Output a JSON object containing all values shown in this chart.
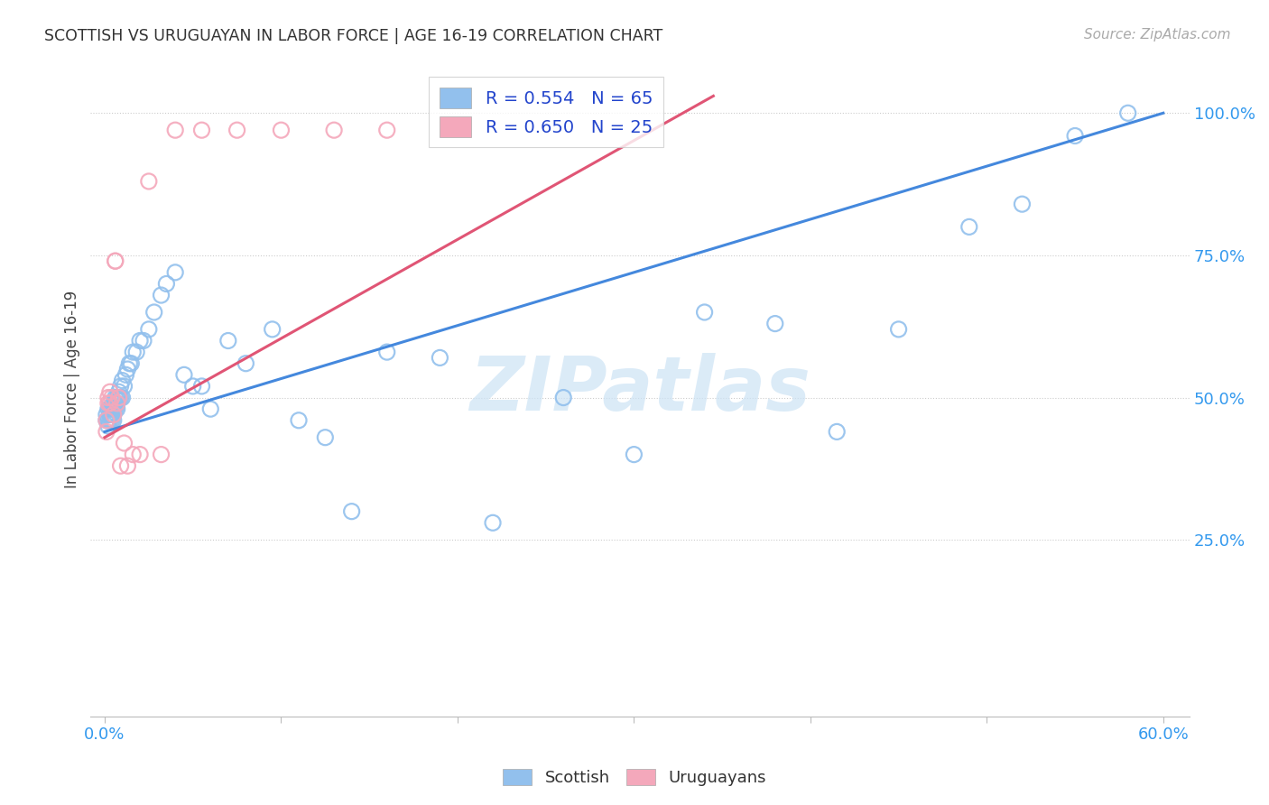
{
  "title": "SCOTTISH VS URUGUAYAN IN LABOR FORCE | AGE 16-19 CORRELATION CHART",
  "source": "Source: ZipAtlas.com",
  "ylabel": "In Labor Force | Age 16-19",
  "xlim": [
    0.0,
    0.6
  ],
  "ylim": [
    0.0,
    1.08
  ],
  "ytick_labels": [
    "25.0%",
    "50.0%",
    "75.0%",
    "100.0%"
  ],
  "ytick_values": [
    0.25,
    0.5,
    0.75,
    1.0
  ],
  "legend_r_scottish": "R = 0.554",
  "legend_n_scottish": "N = 65",
  "legend_r_uruguayan": "R = 0.650",
  "legend_n_uruguayan": "N = 25",
  "scottish_color": "#92c0ed",
  "uruguayan_color": "#f4a8bb",
  "scottish_line_color": "#4488dd",
  "uruguayan_line_color": "#e05575",
  "watermark_color": "#cce3f5",
  "scottish_x": [
    0.001,
    0.001,
    0.002,
    0.002,
    0.002,
    0.003,
    0.003,
    0.003,
    0.003,
    0.004,
    0.004,
    0.004,
    0.005,
    0.005,
    0.005,
    0.005,
    0.006,
    0.006,
    0.006,
    0.007,
    0.007,
    0.007,
    0.008,
    0.008,
    0.009,
    0.009,
    0.01,
    0.01,
    0.011,
    0.012,
    0.013,
    0.014,
    0.015,
    0.016,
    0.018,
    0.02,
    0.022,
    0.025,
    0.028,
    0.032,
    0.035,
    0.04,
    0.045,
    0.05,
    0.055,
    0.06,
    0.07,
    0.08,
    0.095,
    0.11,
    0.125,
    0.14,
    0.16,
    0.19,
    0.22,
    0.26,
    0.3,
    0.34,
    0.38,
    0.415,
    0.45,
    0.49,
    0.52,
    0.55,
    0.58
  ],
  "scottish_y": [
    0.46,
    0.47,
    0.45,
    0.48,
    0.46,
    0.47,
    0.46,
    0.48,
    0.47,
    0.46,
    0.48,
    0.47,
    0.47,
    0.49,
    0.48,
    0.46,
    0.49,
    0.48,
    0.5,
    0.48,
    0.5,
    0.49,
    0.51,
    0.5,
    0.5,
    0.52,
    0.5,
    0.53,
    0.52,
    0.54,
    0.55,
    0.56,
    0.56,
    0.58,
    0.58,
    0.6,
    0.6,
    0.62,
    0.65,
    0.68,
    0.7,
    0.72,
    0.54,
    0.52,
    0.52,
    0.48,
    0.6,
    0.56,
    0.62,
    0.46,
    0.43,
    0.3,
    0.58,
    0.57,
    0.28,
    0.5,
    0.4,
    0.65,
    0.63,
    0.44,
    0.62,
    0.8,
    0.84,
    0.96,
    1.0
  ],
  "uruguayan_x": [
    0.001,
    0.001,
    0.002,
    0.002,
    0.003,
    0.003,
    0.004,
    0.005,
    0.006,
    0.006,
    0.007,
    0.008,
    0.009,
    0.011,
    0.013,
    0.016,
    0.02,
    0.025,
    0.032,
    0.04,
    0.055,
    0.075,
    0.1,
    0.13,
    0.16
  ],
  "uruguayan_y": [
    0.44,
    0.46,
    0.49,
    0.5,
    0.49,
    0.51,
    0.5,
    0.47,
    0.74,
    0.74,
    0.49,
    0.5,
    0.38,
    0.42,
    0.38,
    0.4,
    0.4,
    0.88,
    0.4,
    0.97,
    0.97,
    0.97,
    0.97,
    0.97,
    0.97
  ],
  "scottish_line_x": [
    0.0,
    0.6
  ],
  "scottish_line_y": [
    0.44,
    1.0
  ],
  "uruguayan_line_x": [
    0.0,
    0.345
  ],
  "uruguayan_line_y": [
    0.43,
    1.03
  ]
}
